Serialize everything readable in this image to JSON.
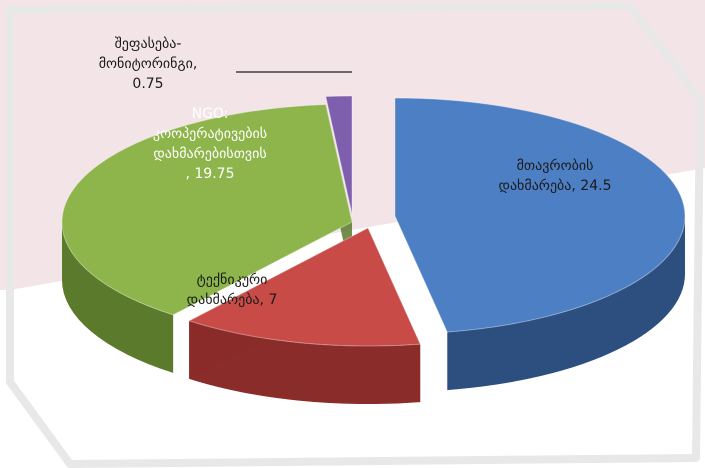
{
  "chart_data": {
    "type": "pie",
    "style": "3d-exploded",
    "title": "",
    "series": [
      {
        "values": [
          24.5,
          7,
          19.75,
          0.75
        ],
        "categories": [
          "მთავრობის დახმარება",
          "ტექნიკური დახმარება",
          "NGO: კოოპერატივების დახმარებისთვის",
          "შეფასება-მონიტორინგი"
        ]
      }
    ],
    "data_labels": [
      [
        "მთავრობის",
        "დახმარება, 24.5"
      ],
      [
        "ტექნიკური",
        "დახმარება, 7"
      ],
      [
        "NGO:",
        "კოოპერატივების",
        "დახმარებისთვის",
        ", 19.75"
      ],
      [
        "შეფასება-",
        "მონიტორინგი,",
        "0.75"
      ]
    ],
    "colors": {
      "slices_top": [
        "#4d7fc4",
        "#c84b47",
        "#8db54b",
        "#7e5fae"
      ],
      "slices_side": [
        "#2c4f7f",
        "#8a2c29",
        "#5b7a2c",
        "#4e3578"
      ],
      "background_band": "#f3e4e8",
      "frame": "#c9c9c9"
    }
  }
}
